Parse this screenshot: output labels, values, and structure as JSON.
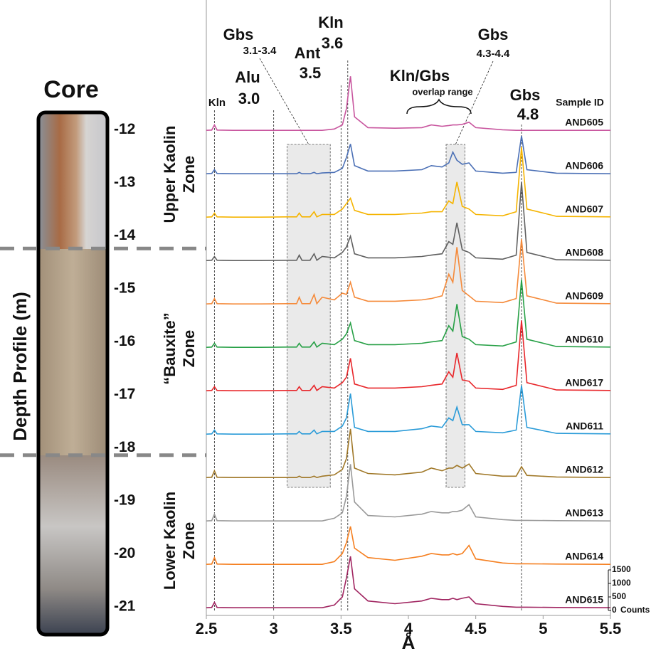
{
  "chart_data": {
    "type": "line",
    "xlabel": "Å",
    "xlim": [
      2.5,
      5.5
    ],
    "xticks": [
      2.5,
      3,
      3.5,
      4,
      4.5,
      5,
      5.5
    ],
    "ylim": [
      0,
      1500
    ],
    "yticks": [
      0,
      500,
      1000,
      1500
    ],
    "ylabel": "Counts",
    "series_header": "Sample ID",
    "x": [
      2.5,
      2.54,
      2.56,
      2.58,
      2.7,
      2.9,
      3.1,
      3.17,
      3.19,
      3.21,
      3.27,
      3.3,
      3.32,
      3.36,
      3.45,
      3.51,
      3.54,
      3.57,
      3.6,
      3.7,
      3.9,
      4.1,
      4.17,
      4.25,
      4.3,
      4.33,
      4.36,
      4.4,
      4.45,
      4.5,
      4.7,
      4.8,
      4.84,
      4.88,
      5.1,
      5.5
    ],
    "series": [
      {
        "name": "AND605",
        "color": "#c8559e",
        "values": [
          100,
          110,
          300,
          110,
          100,
          100,
          100,
          100,
          100,
          100,
          100,
          100,
          100,
          100,
          150,
          300,
          900,
          2100,
          600,
          200,
          180,
          200,
          300,
          250,
          280,
          300,
          300,
          320,
          400,
          200,
          120,
          100,
          100,
          100,
          100,
          100
        ]
      },
      {
        "name": "AND606",
        "color": "#4a6fb5",
        "values": [
          100,
          110,
          250,
          110,
          100,
          100,
          100,
          100,
          150,
          100,
          100,
          150,
          100,
          130,
          150,
          300,
          700,
          1200,
          400,
          200,
          200,
          250,
          400,
          350,
          500,
          900,
          600,
          450,
          500,
          200,
          120,
          150,
          1500,
          250,
          120,
          100
        ]
      },
      {
        "name": "AND607",
        "color": "#f5b400",
        "values": [
          100,
          110,
          250,
          110,
          100,
          100,
          110,
          110,
          250,
          110,
          110,
          300,
          110,
          200,
          200,
          400,
          600,
          800,
          350,
          200,
          200,
          250,
          300,
          300,
          700,
          600,
          1400,
          500,
          400,
          200,
          150,
          300,
          2700,
          400,
          130,
          110
        ]
      },
      {
        "name": "AND608",
        "color": "#606060",
        "values": [
          100,
          110,
          250,
          110,
          100,
          100,
          110,
          110,
          300,
          110,
          110,
          350,
          110,
          250,
          200,
          400,
          600,
          1000,
          350,
          200,
          200,
          250,
          300,
          350,
          800,
          700,
          1500,
          500,
          400,
          200,
          150,
          300,
          3000,
          400,
          130,
          110
        ]
      },
      {
        "name": "AND609",
        "color": "#f58a3a",
        "values": [
          100,
          110,
          300,
          110,
          100,
          100,
          110,
          110,
          350,
          110,
          110,
          450,
          110,
          350,
          250,
          500,
          450,
          900,
          350,
          200,
          200,
          250,
          300,
          400,
          1200,
          900,
          2200,
          600,
          400,
          200,
          150,
          300,
          2500,
          400,
          130,
          110
        ]
      },
      {
        "name": "AND610",
        "color": "#27a046",
        "values": [
          100,
          110,
          250,
          110,
          100,
          100,
          110,
          110,
          250,
          110,
          110,
          300,
          110,
          250,
          200,
          400,
          600,
          1000,
          350,
          200,
          200,
          250,
          300,
          350,
          900,
          700,
          1700,
          500,
          400,
          200,
          150,
          300,
          2600,
          400,
          130,
          110
        ]
      },
      {
        "name": "AND617",
        "color": "#e8262a",
        "values": [
          100,
          110,
          250,
          110,
          100,
          100,
          110,
          110,
          250,
          110,
          110,
          300,
          110,
          250,
          200,
          400,
          600,
          1300,
          350,
          200,
          200,
          250,
          300,
          350,
          800,
          600,
          1500,
          500,
          450,
          200,
          150,
          300,
          2700,
          400,
          130,
          110
        ]
      },
      {
        "name": "AND611",
        "color": "#2a9bd8",
        "values": [
          100,
          110,
          250,
          110,
          100,
          100,
          110,
          110,
          200,
          110,
          110,
          250,
          110,
          200,
          200,
          400,
          700,
          1600,
          350,
          200,
          200,
          300,
          400,
          350,
          700,
          600,
          1100,
          450,
          450,
          200,
          150,
          250,
          1900,
          350,
          130,
          110
        ]
      },
      {
        "name": "AND612",
        "color": "#a07828",
        "values": [
          100,
          110,
          350,
          110,
          100,
          100,
          100,
          100,
          150,
          100,
          100,
          150,
          100,
          150,
          200,
          400,
          800,
          1900,
          450,
          250,
          200,
          300,
          450,
          350,
          450,
          450,
          550,
          450,
          600,
          250,
          150,
          150,
          500,
          180,
          120,
          100
        ]
      },
      {
        "name": "AND613",
        "color": "#999999",
        "values": [
          100,
          110,
          350,
          110,
          100,
          100,
          100,
          100,
          100,
          100,
          100,
          100,
          100,
          100,
          200,
          400,
          1000,
          2200,
          800,
          300,
          250,
          350,
          450,
          400,
          400,
          450,
          450,
          500,
          700,
          250,
          150,
          120,
          120,
          120,
          110,
          100
        ]
      },
      {
        "name": "AND614",
        "color": "#f57f20",
        "values": [
          100,
          110,
          350,
          110,
          100,
          100,
          100,
          100,
          100,
          100,
          100,
          100,
          100,
          100,
          200,
          500,
          900,
          1500,
          700,
          350,
          250,
          400,
          500,
          450,
          450,
          500,
          450,
          500,
          800,
          300,
          150,
          120,
          120,
          120,
          110,
          100
        ]
      },
      {
        "name": "AND615",
        "color": "#a02460",
        "values": [
          100,
          110,
          300,
          110,
          100,
          100,
          100,
          100,
          100,
          100,
          100,
          100,
          100,
          100,
          200,
          500,
          1200,
          2000,
          800,
          350,
          250,
          350,
          450,
          400,
          400,
          450,
          400,
          450,
          500,
          250,
          150,
          120,
          120,
          120,
          110,
          100
        ]
      }
    ],
    "annotations": [
      {
        "label": "Kln",
        "x": 2.56
      },
      {
        "label": "Alu",
        "sublabel": "3.0",
        "x": 3.0
      },
      {
        "label": "Gbs",
        "sublabel": "3.1-3.4",
        "range": [
          3.1,
          3.42
        ],
        "shade": true
      },
      {
        "label": "Ant",
        "sublabel": "3.5",
        "x": 3.5
      },
      {
        "label": "Kln",
        "sublabel": "3.6",
        "x": 3.55
      },
      {
        "label": "Kln/Gbs",
        "sublabel": "overlap range",
        "range": [
          4.1,
          4.6
        ]
      },
      {
        "label": "Gbs",
        "sublabel": "4.3-4.4",
        "range": [
          4.28,
          4.42
        ],
        "shade": true
      },
      {
        "label": "Gbs",
        "sublabel": "4.8",
        "x": 4.84
      }
    ],
    "core": {
      "title": "Core",
      "axis_label": "Depth Profile (m)",
      "ylim": [
        -11.7,
        -21.5
      ],
      "yticks": [
        -12,
        -13,
        -14,
        -15,
        -16,
        -17,
        -18,
        -19,
        -20,
        -21
      ],
      "zone_boundaries": [
        -14.24,
        -18.14
      ],
      "zones": [
        {
          "lines": [
            "Upper Kaolin",
            "Zone"
          ]
        },
        {
          "lines": [
            "“Bauxite”",
            "Zone"
          ]
        },
        {
          "lines": [
            "Lower Kaolin",
            "Zone"
          ]
        }
      ]
    }
  }
}
